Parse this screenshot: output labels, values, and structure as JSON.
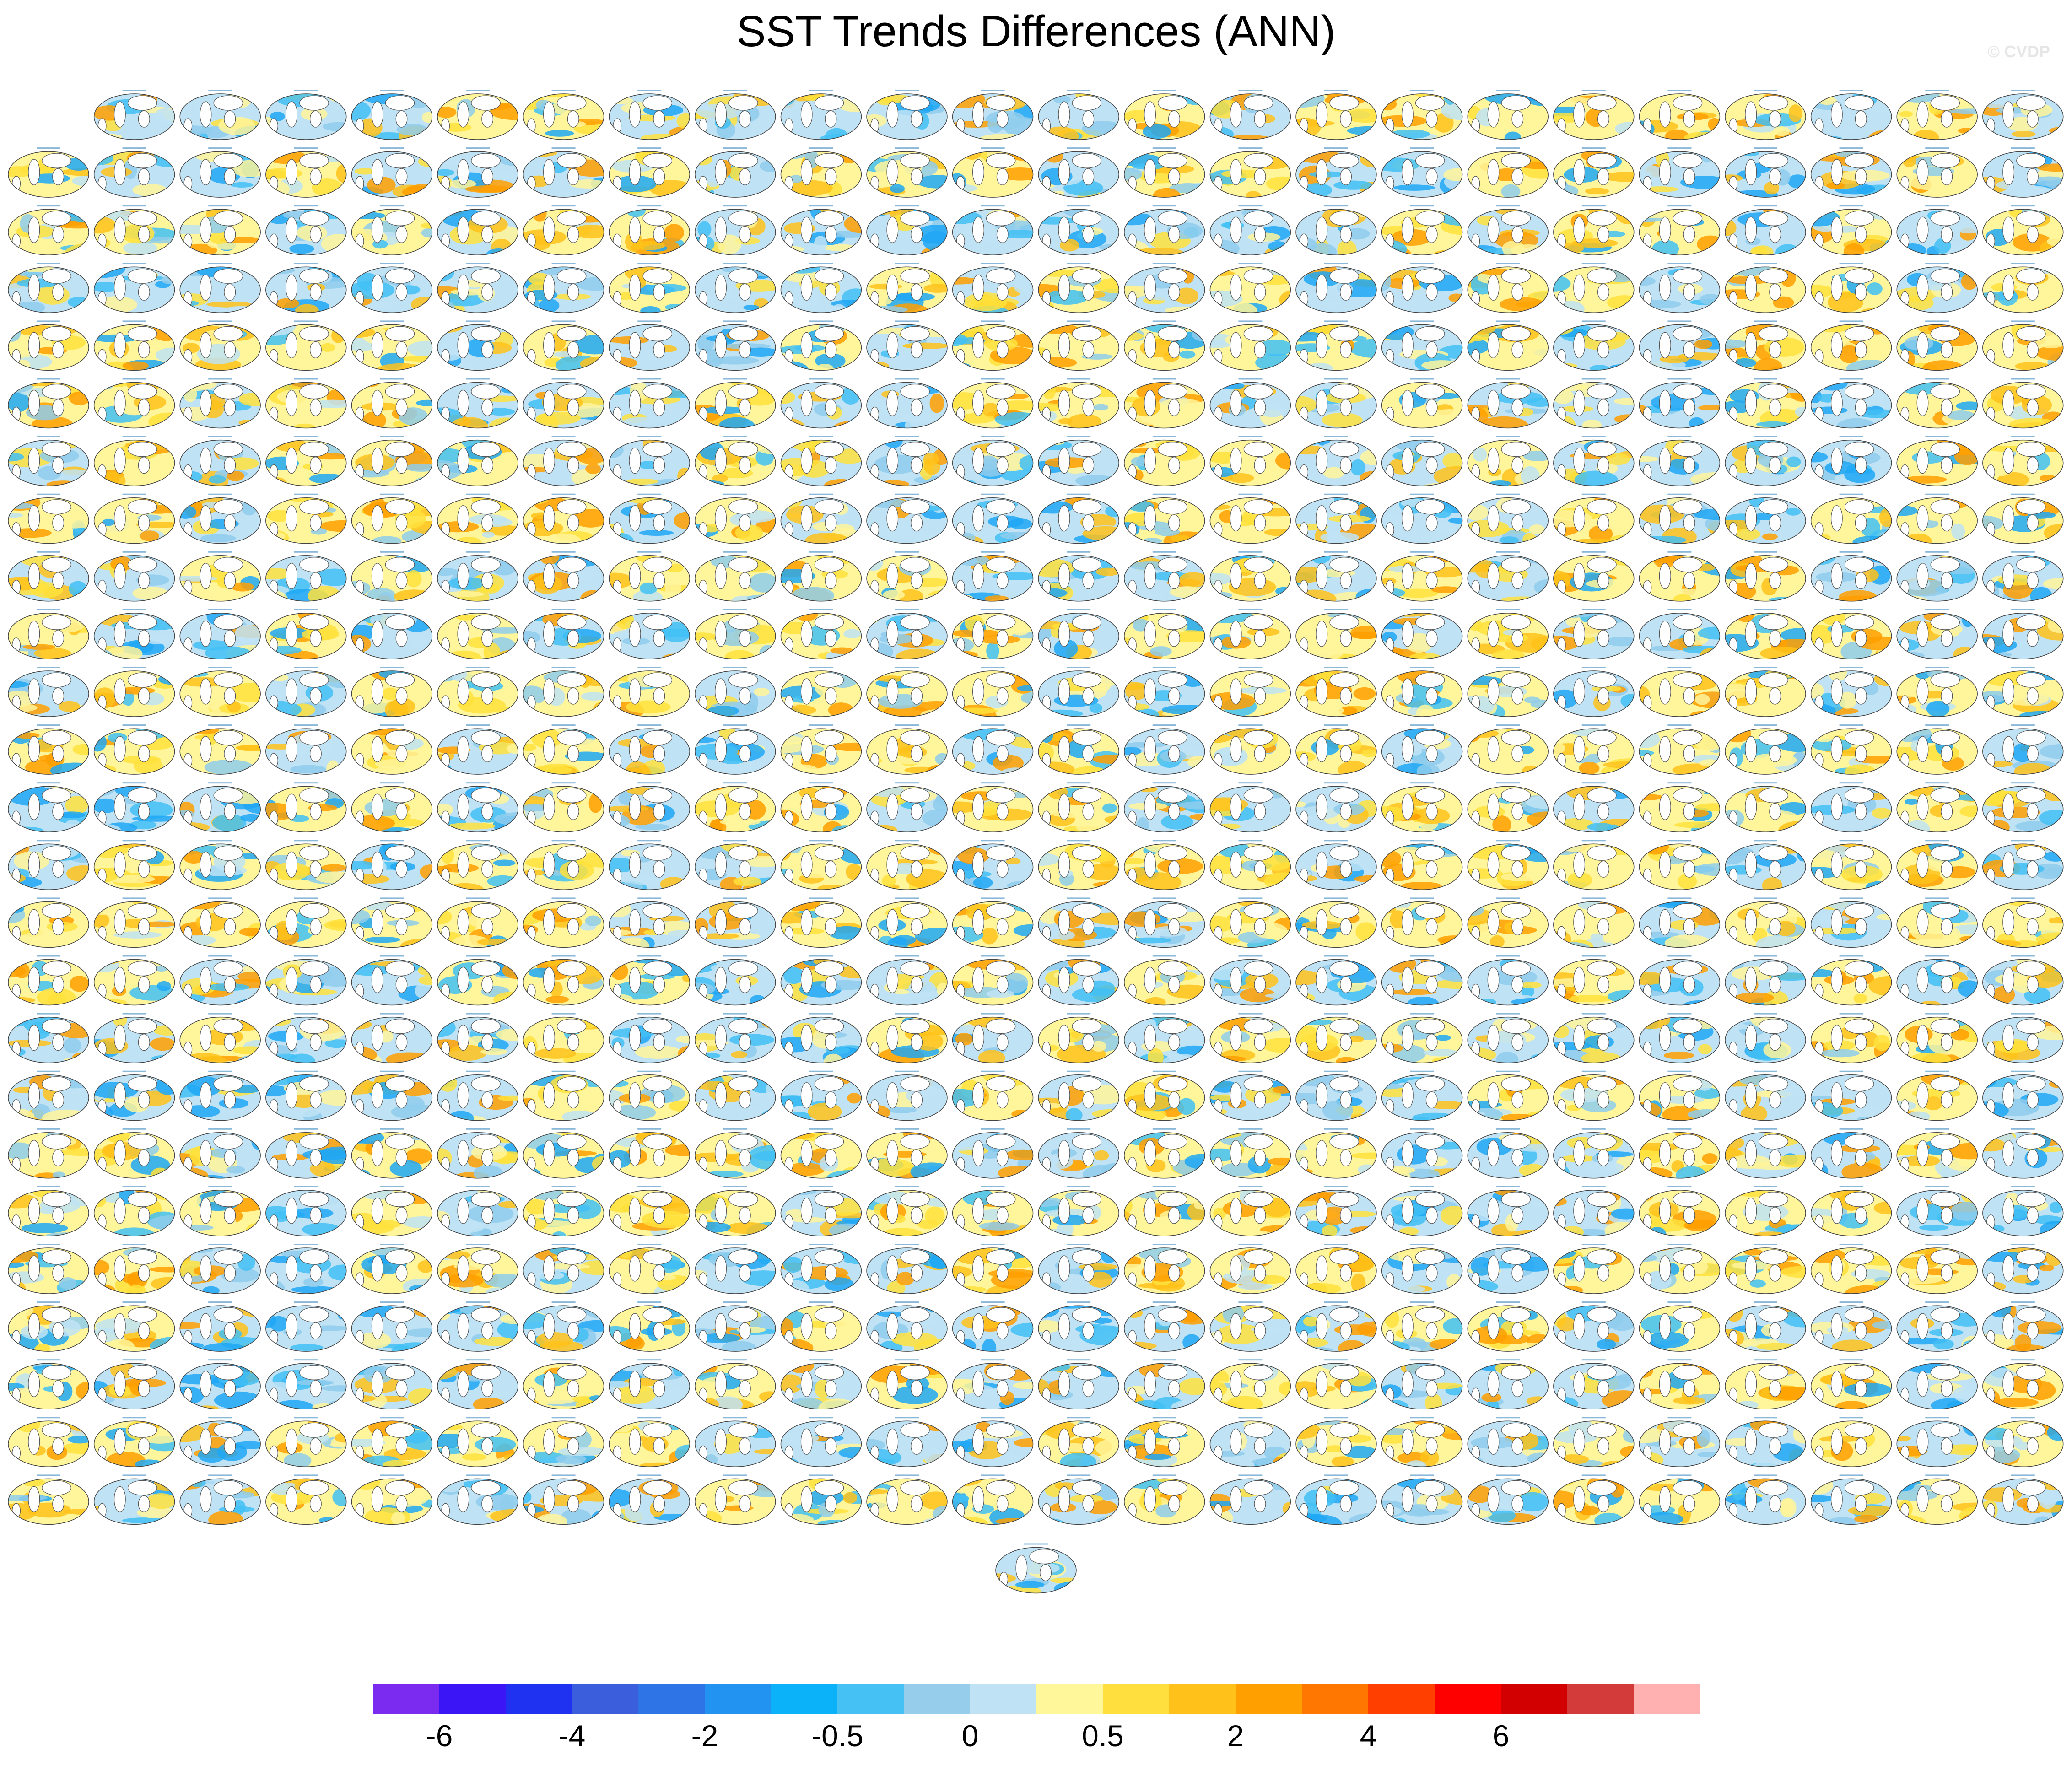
{
  "title": "SST Trends Differences (ANN)",
  "watermark": "© CVDP",
  "colors": {
    "warm": [
      "#fff59a",
      "#ffe23c",
      "#ffc21a",
      "#ff9f00"
    ],
    "cool": [
      "#bfe3f5",
      "#8fcdec",
      "#42bff5",
      "#1ea7f4"
    ],
    "land": "#ffffff",
    "coast": "#555555"
  },
  "chart_data": {
    "type": "heatmap",
    "description_of_layout": "grid",
    "grid": {
      "rows": 25,
      "cols": 24,
      "first_row_skip_cols": 1,
      "extra_panel_centered": true
    },
    "colorbar": {
      "colors": [
        "#7b2bf0",
        "#3b15f5",
        "#1f32f2",
        "#3b5fdc",
        "#2f74e6",
        "#2393f2",
        "#0bb2f9",
        "#46c1f4",
        "#95cdea",
        "#bfe3f5",
        "#fff79a",
        "#ffdf3d",
        "#ffc11a",
        "#ff9f00",
        "#ff7700",
        "#ff3f00",
        "#ff0000",
        "#d20000",
        "#d33b3b",
        "#ffb1b1"
      ],
      "tick_labels": [
        "-6",
        "-4",
        "-2",
        "-0.5",
        "0",
        "0.5",
        "2",
        "4",
        "6"
      ],
      "tick_boundaries": [
        1,
        3,
        5,
        7,
        9,
        11,
        13,
        15,
        17
      ]
    }
  }
}
